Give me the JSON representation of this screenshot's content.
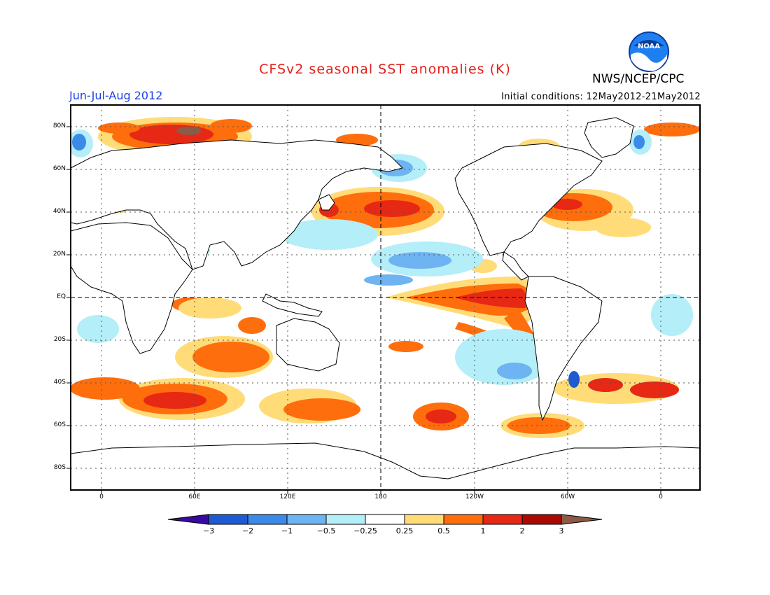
{
  "header": {
    "title": "CFSv2 seasonal SST anomalies (K)",
    "agency": "NWS/NCEP/CPC",
    "season": "Jun-Jul-Aug 2012",
    "initial_conditions": "Initial conditions: 12May2012-21May2012",
    "logo_text": "NOAA"
  },
  "map": {
    "latitude_labels": [
      "80N",
      "60N",
      "40N",
      "20N",
      "EQ",
      "20S",
      "40S",
      "60S",
      "80S"
    ],
    "longitude_labels": [
      "0",
      "60E",
      "120E",
      "180",
      "120W",
      "60W",
      "0"
    ]
  },
  "colorbar": {
    "labels": [
      "-3",
      "-2",
      "-1",
      "-0.5",
      "-0.25",
      "0.25",
      "0.5",
      "1",
      "2",
      "3"
    ],
    "colors": [
      "#3a0aa0",
      "#1e5ad2",
      "#3c8ae8",
      "#6eb4f2",
      "#b4eef8",
      "#ffffff",
      "#ffdc78",
      "#ff6e0c",
      "#e62814",
      "#aa0a05",
      "#8c5a46"
    ]
  },
  "colors": {
    "title": "#e3201b",
    "season": "#1d41e6",
    "land_outline": "#000000",
    "background": "#ffffff"
  }
}
